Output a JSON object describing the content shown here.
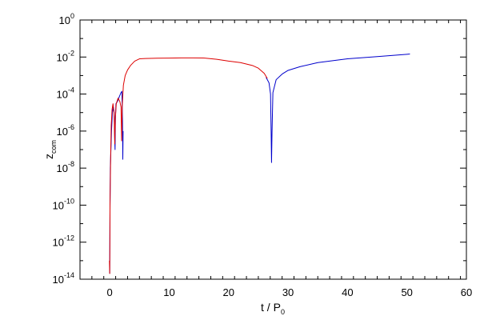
{
  "chart_data": {
    "type": "line",
    "title": "",
    "xlabel_main": "t / P",
    "xlabel_sub": "0",
    "ylabel_main": "z",
    "ylabel_sub": "com",
    "xlim": [
      -5,
      60
    ],
    "ylim": [
      1e-14,
      1
    ],
    "y_log": true,
    "grid": false,
    "x_ticks": [
      {
        "value": 0,
        "label": "0"
      },
      {
        "value": 10,
        "label": "10"
      },
      {
        "value": 20,
        "label": "20"
      },
      {
        "value": 30,
        "label": "30"
      },
      {
        "value": 40,
        "label": "40"
      },
      {
        "value": 50,
        "label": "50"
      },
      {
        "value": 60,
        "label": "60"
      }
    ],
    "y_ticks": [
      {
        "value": 1.0,
        "base": "10",
        "exp": "0"
      },
      {
        "value": 0.01,
        "base": "10",
        "exp": "-2"
      },
      {
        "value": 0.0001,
        "base": "10",
        "exp": "-4"
      },
      {
        "value": 1e-06,
        "base": "10",
        "exp": "-6"
      },
      {
        "value": 1e-08,
        "base": "10",
        "exp": "-8"
      },
      {
        "value": 1e-10,
        "base": "10",
        "exp": "-10"
      },
      {
        "value": 1e-12,
        "base": "10",
        "exp": "-12"
      },
      {
        "value": 1e-14,
        "base": "10",
        "exp": "-14"
      }
    ],
    "series": [
      {
        "color": "#0000cc",
        "segments": [
          [
            [
              0.0,
              2e-14
            ],
            [
              0.05,
              1e-10
            ],
            [
              0.1,
              1e-08
            ],
            [
              0.2,
              1e-07
            ],
            [
              0.3,
              1e-06
            ],
            [
              0.45,
              1e-05
            ],
            [
              0.6,
              2e-05
            ],
            [
              0.75,
              1e-05
            ],
            [
              0.85,
              3e-07
            ],
            [
              0.9,
              1e-07
            ],
            [
              0.95,
              4e-06
            ],
            [
              1.05,
              3e-05
            ],
            [
              1.3,
              4e-05
            ],
            [
              1.6,
              7e-05
            ],
            [
              1.9,
              0.00012
            ],
            [
              2.05,
              0.00014
            ],
            [
              2.15,
              3e-06
            ],
            [
              2.2,
              3e-08
            ],
            [
              2.25,
              1e-06
            ]
          ],
          [
            [
              26.3,
              0.0008
            ],
            [
              26.8,
              0.0004
            ],
            [
              27.05,
              0.0001
            ],
            [
              27.15,
              1e-06
            ],
            [
              27.22,
              2e-08
            ],
            [
              27.3,
              8e-07
            ],
            [
              27.45,
              0.00012
            ],
            [
              28.0,
              0.0006
            ],
            [
              29,
              0.0012
            ],
            [
              30,
              0.0019
            ],
            [
              32,
              0.003
            ],
            [
              35,
              0.005
            ],
            [
              40,
              0.008
            ],
            [
              45,
              0.0105
            ],
            [
              50,
              0.014
            ],
            [
              50.5,
              0.0145
            ]
          ]
        ]
      },
      {
        "color": "#dd0000",
        "segments": [
          [
            [
              -0.05,
              1e-13
            ],
            [
              0.0,
              2e-14
            ],
            [
              0.05,
              1e-10
            ],
            [
              0.15,
              3e-08
            ],
            [
              0.25,
              2e-06
            ],
            [
              0.4,
              1.5e-05
            ],
            [
              0.55,
              3e-05
            ],
            [
              0.75,
              8e-06
            ],
            [
              0.85,
              2e-07
            ],
            [
              0.95,
              5e-06
            ],
            [
              1.1,
              3e-05
            ],
            [
              1.4,
              6e-05
            ],
            [
              1.7,
              4e-05
            ],
            [
              1.9,
              2e-05
            ],
            [
              2.0,
              3e-07
            ],
            [
              2.1,
              2e-05
            ],
            [
              2.3,
              0.0003
            ],
            [
              2.6,
              0.001
            ],
            [
              3.0,
              0.002
            ],
            [
              3.5,
              0.0035
            ],
            [
              4.2,
              0.006
            ],
            [
              5.0,
              0.008
            ],
            [
              6,
              0.0083
            ],
            [
              8,
              0.0086
            ],
            [
              10,
              0.0088
            ],
            [
              12,
              0.009
            ],
            [
              14,
              0.009
            ],
            [
              16,
              0.0088
            ],
            [
              18,
              0.0075
            ],
            [
              20,
              0.006
            ],
            [
              22,
              0.005
            ],
            [
              24,
              0.0035
            ],
            [
              25,
              0.0025
            ],
            [
              26,
              0.0013
            ],
            [
              26.5,
              0.0007
            ]
          ]
        ]
      }
    ]
  }
}
